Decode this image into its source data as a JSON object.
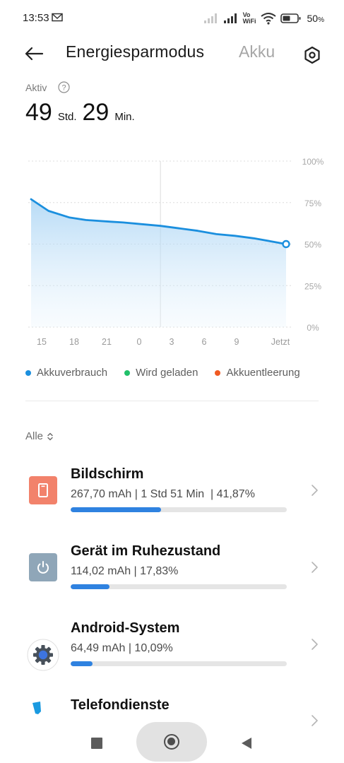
{
  "status": {
    "time": "13:53",
    "vo": "Vo",
    "wifi": "WiFi",
    "battery_percent": "50",
    "battery_percent_sign": "%"
  },
  "header": {
    "title": "Energiesparmodus",
    "alt_title": "Akku",
    "icons": {
      "back": "arrow-left-icon",
      "settings": "settings-hexagon-icon"
    }
  },
  "active": {
    "label": "Aktiv",
    "hours": "49",
    "hours_unit": "Std.",
    "minutes": "29",
    "minutes_unit": "Min."
  },
  "chart_data": {
    "type": "area",
    "title": "",
    "xlabel": "",
    "ylabel": "",
    "x_ticks": [
      "15",
      "18",
      "21",
      "0",
      "3",
      "6",
      "9",
      "Jetzt"
    ],
    "y_ticks": [
      "0%",
      "25%",
      "50%",
      "75%",
      "100%"
    ],
    "ylim": [
      0,
      100
    ],
    "xlim": [
      13.6,
      34.1
    ],
    "x_axis_note": "hours of day; 0 = midnight, values after midnight continue as 24+",
    "series": [
      {
        "name": "Akkuverbrauch",
        "color": "#1b8fde",
        "x": [
          13.6,
          15.0,
          16.7,
          18.0,
          20.0,
          21.0,
          22.5,
          24.0,
          25.5,
          27.0,
          28.5,
          30.0,
          31.5,
          33.0,
          34.1
        ],
        "y": [
          77,
          70,
          66,
          64.5,
          63.5,
          63,
          62,
          61,
          59.5,
          58,
          56,
          55,
          53.5,
          51.5,
          50
        ]
      }
    ],
    "grid": true,
    "legend": "bottom"
  },
  "legend": [
    {
      "label": "Akkuverbrauch",
      "color": "#1b8fde"
    },
    {
      "label": "Wird geladen",
      "color": "#21c06a"
    },
    {
      "label": "Akkuentleerung",
      "color": "#f05a22"
    }
  ],
  "filter": {
    "label": "Alle"
  },
  "apps": [
    {
      "name": "Bildschirm",
      "detail": "267,70 mAh | 1 Std 51 Min  | 41,87%",
      "percent": 41.87,
      "icon": "screen-icon",
      "icon_bg": "#f2826b"
    },
    {
      "name": "Gerät im Ruhezustand",
      "detail": "114,02 mAh | 17,83%",
      "percent": 17.83,
      "icon": "power-icon",
      "icon_bg": "#8fa6b8"
    },
    {
      "name": "Android-System",
      "detail": "64,49 mAh | 10,09%",
      "percent": 10.09,
      "icon": "android-system-gear-icon",
      "icon_bg": "#ffffff"
    },
    {
      "name": "Telefondienste",
      "detail": "",
      "percent": null,
      "icon": "phone-services-icon",
      "icon_bg": "#ffffff"
    }
  ]
}
